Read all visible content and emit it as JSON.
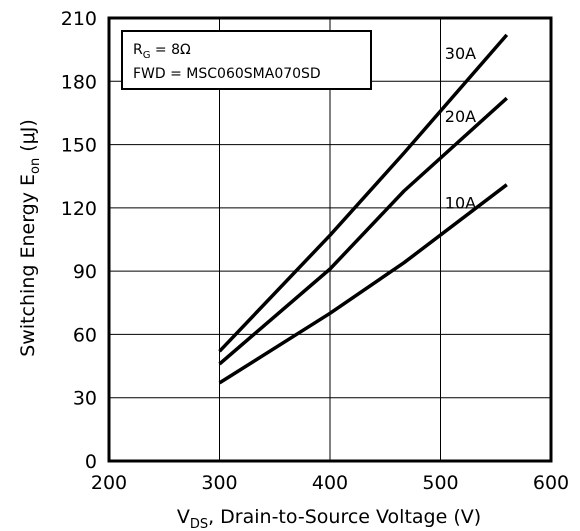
{
  "chart_data": {
    "type": "line",
    "xlabel": {
      "main": "V",
      "sub": "DS",
      "rest": ", Drain-to-Source Voltage (V)"
    },
    "ylabel": {
      "main": "Switching Energy E",
      "sub": "on",
      "rest": " (μJ)"
    },
    "xlim": [
      200,
      600
    ],
    "ylim": [
      0,
      210
    ],
    "xticks": [
      200,
      300,
      400,
      500,
      600
    ],
    "yticks": [
      0,
      30,
      60,
      90,
      120,
      150,
      180,
      210
    ],
    "grid": true,
    "legend": {
      "line1": {
        "main": "R",
        "sub": "G",
        "rest": " = 8Ω"
      },
      "line2": "FWD = MSC060SMA070SD",
      "placement": "top-left"
    },
    "series": [
      {
        "name": "30A",
        "color": "#000000",
        "x": [
          300,
          400,
          467,
          560
        ],
        "y": [
          52,
          107,
          146,
          202
        ]
      },
      {
        "name": "20A",
        "color": "#000000",
        "x": [
          300,
          400,
          467,
          560
        ],
        "y": [
          46,
          91,
          128,
          172
        ]
      },
      {
        "name": "10A",
        "color": "#000000",
        "x": [
          300,
          400,
          467,
          560
        ],
        "y": [
          37,
          70,
          94,
          131
        ]
      }
    ]
  }
}
